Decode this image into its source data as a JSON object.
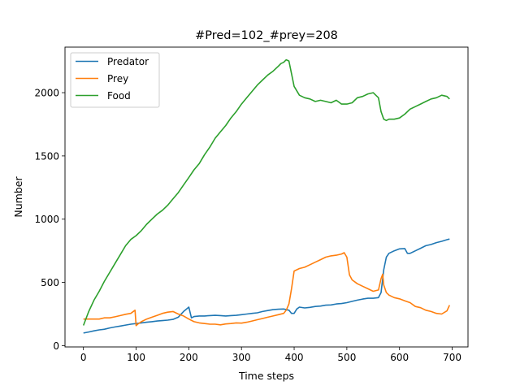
{
  "chart_data": {
    "type": "line",
    "title": "#Pred=102_#prey=208",
    "xlabel": "Time steps",
    "ylabel": "Number",
    "xlim": [
      -35,
      730
    ],
    "ylim": [
      -10,
      2360
    ],
    "xticks": [
      0,
      100,
      200,
      300,
      400,
      500,
      600,
      700
    ],
    "yticks": [
      0,
      500,
      1000,
      1500,
      2000
    ],
    "legend_position": "top-left",
    "grid": false,
    "series": [
      {
        "name": "Predator",
        "color": "#1f77b4",
        "x": [
          0,
          10,
          20,
          30,
          40,
          50,
          60,
          70,
          80,
          90,
          100,
          110,
          120,
          130,
          140,
          150,
          160,
          170,
          180,
          190,
          200,
          205,
          210,
          220,
          230,
          240,
          250,
          260,
          270,
          280,
          290,
          300,
          310,
          320,
          330,
          340,
          350,
          360,
          370,
          380,
          390,
          395,
          400,
          405,
          410,
          420,
          430,
          440,
          450,
          460,
          470,
          480,
          490,
          500,
          510,
          520,
          530,
          540,
          550,
          560,
          565,
          570,
          575,
          580,
          590,
          600,
          610,
          615,
          620,
          630,
          640,
          650,
          660,
          670,
          680,
          690,
          695
        ],
        "y": [
          100,
          108,
          117,
          125,
          130,
          140,
          148,
          155,
          163,
          170,
          175,
          180,
          185,
          190,
          195,
          198,
          202,
          208,
          225,
          270,
          305,
          220,
          230,
          235,
          235,
          238,
          240,
          238,
          235,
          238,
          240,
          245,
          250,
          255,
          260,
          270,
          278,
          285,
          288,
          290,
          280,
          255,
          255,
          290,
          305,
          298,
          303,
          310,
          313,
          320,
          322,
          330,
          333,
          340,
          350,
          360,
          368,
          375,
          375,
          380,
          420,
          600,
          700,
          730,
          750,
          765,
          768,
          730,
          730,
          750,
          770,
          790,
          800,
          815,
          825,
          838,
          843
        ]
      },
      {
        "name": "Prey",
        "color": "#ff7f0e",
        "x": [
          0,
          10,
          20,
          30,
          40,
          50,
          60,
          70,
          80,
          90,
          98,
          100,
          103,
          110,
          120,
          130,
          140,
          150,
          160,
          170,
          180,
          190,
          200,
          210,
          220,
          230,
          240,
          250,
          260,
          270,
          280,
          290,
          300,
          310,
          320,
          330,
          340,
          350,
          360,
          370,
          380,
          385,
          390,
          395,
          400,
          410,
          420,
          430,
          440,
          450,
          460,
          470,
          480,
          490,
          495,
          500,
          505,
          510,
          520,
          530,
          540,
          550,
          560,
          565,
          568,
          570,
          575,
          580,
          590,
          600,
          610,
          620,
          630,
          640,
          650,
          660,
          670,
          680,
          690,
          695
        ],
        "y": [
          210,
          210,
          210,
          210,
          220,
          220,
          228,
          238,
          248,
          255,
          280,
          158,
          170,
          190,
          210,
          225,
          240,
          255,
          265,
          270,
          250,
          235,
          210,
          190,
          180,
          175,
          170,
          170,
          165,
          172,
          175,
          180,
          178,
          185,
          195,
          205,
          215,
          225,
          235,
          245,
          255,
          280,
          330,
          450,
          590,
          610,
          620,
          640,
          660,
          680,
          700,
          710,
          715,
          725,
          735,
          700,
          560,
          520,
          490,
          470,
          450,
          430,
          440,
          530,
          565,
          480,
          420,
          400,
          380,
          370,
          355,
          340,
          310,
          300,
          280,
          270,
          255,
          250,
          275,
          320
        ]
      },
      {
        "name": "Food",
        "color": "#2ca02c",
        "x": [
          0,
          10,
          20,
          30,
          40,
          50,
          60,
          70,
          80,
          90,
          100,
          110,
          120,
          130,
          140,
          150,
          160,
          170,
          180,
          190,
          200,
          210,
          220,
          230,
          240,
          250,
          260,
          270,
          280,
          290,
          300,
          310,
          320,
          330,
          340,
          350,
          360,
          370,
          375,
          380,
          385,
          390,
          395,
          400,
          410,
          420,
          430,
          440,
          450,
          460,
          470,
          480,
          490,
          500,
          510,
          520,
          530,
          540,
          550,
          560,
          565,
          570,
          575,
          580,
          590,
          600,
          610,
          620,
          630,
          640,
          650,
          660,
          670,
          680,
          690,
          695
        ],
        "y": [
          160,
          270,
          360,
          430,
          510,
          580,
          650,
          720,
          790,
          840,
          870,
          910,
          960,
          1000,
          1040,
          1070,
          1110,
          1160,
          1210,
          1270,
          1330,
          1390,
          1440,
          1510,
          1570,
          1640,
          1690,
          1740,
          1800,
          1850,
          1910,
          1960,
          2010,
          2060,
          2100,
          2140,
          2170,
          2210,
          2230,
          2240,
          2260,
          2250,
          2150,
          2050,
          1980,
          1960,
          1950,
          1930,
          1940,
          1930,
          1920,
          1940,
          1910,
          1910,
          1920,
          1960,
          1970,
          1990,
          2000,
          1960,
          1850,
          1790,
          1780,
          1790,
          1790,
          1800,
          1830,
          1870,
          1890,
          1910,
          1930,
          1950,
          1960,
          1980,
          1970,
          1950
        ]
      }
    ]
  }
}
